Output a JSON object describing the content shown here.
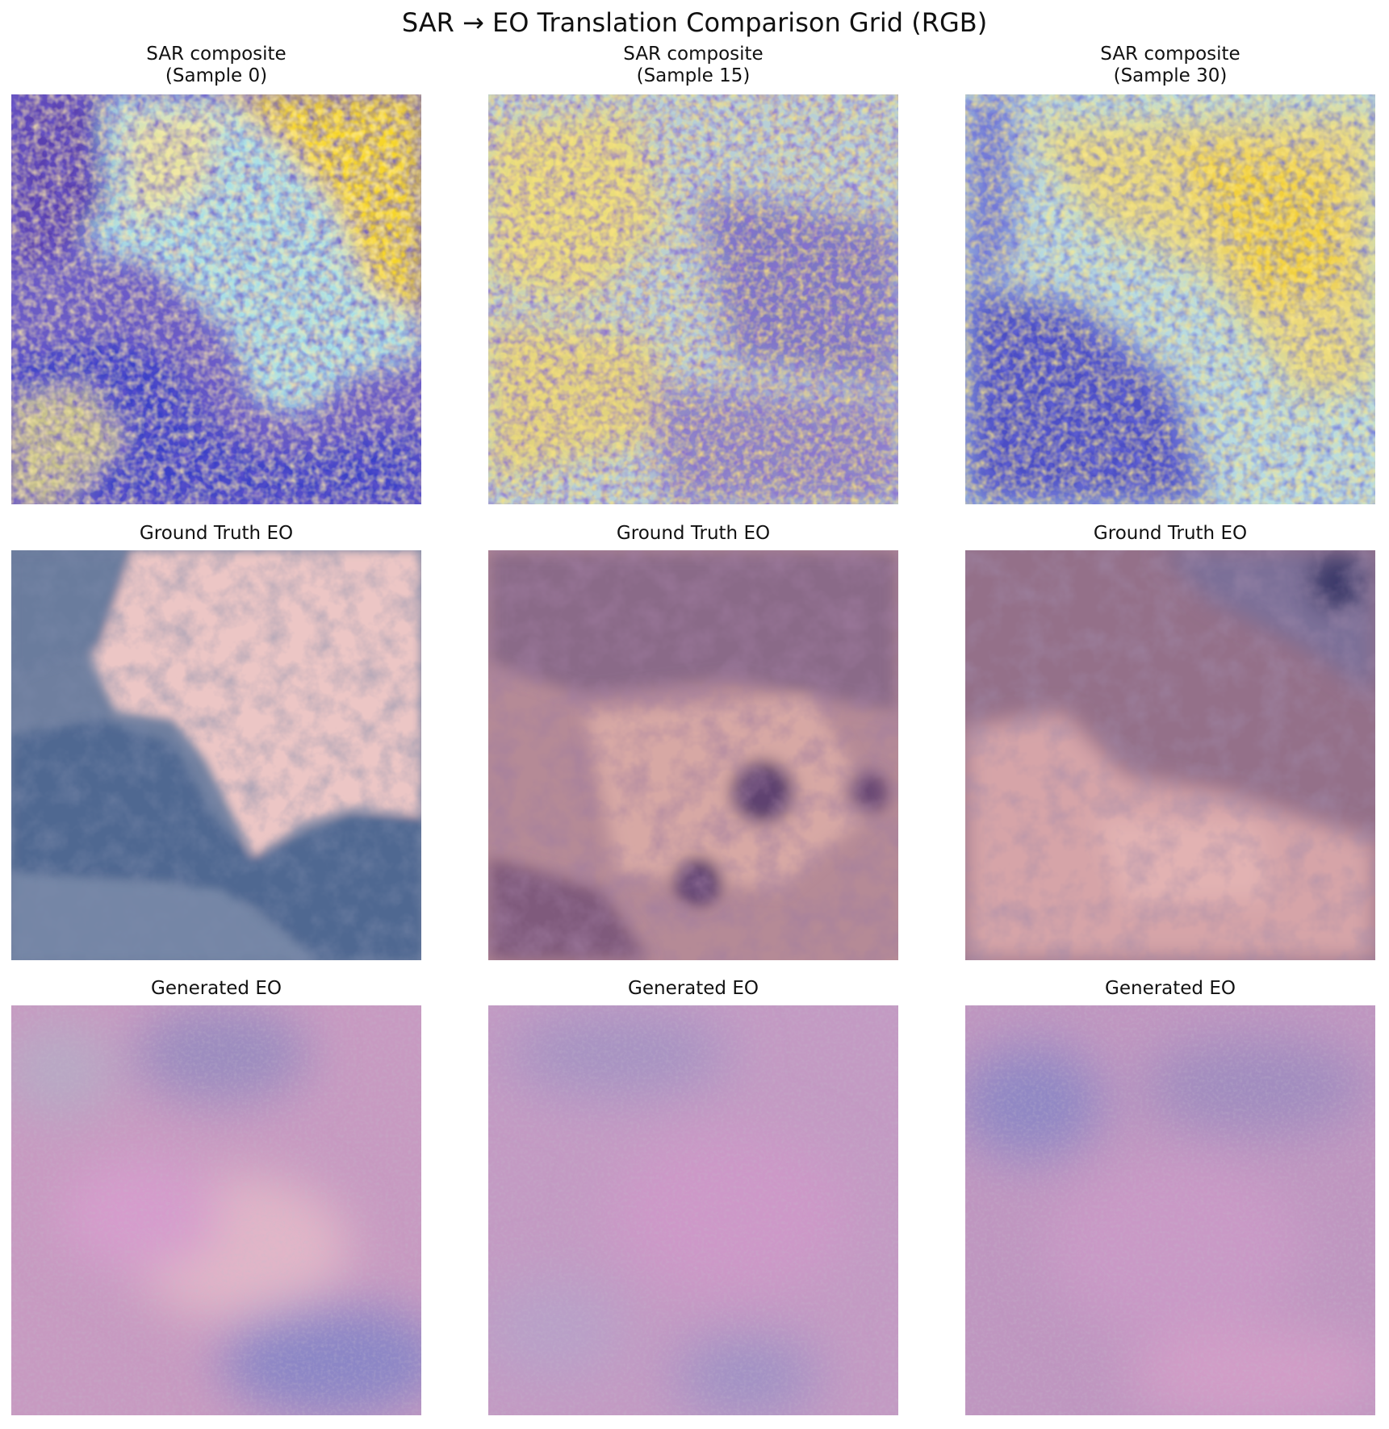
{
  "figure": {
    "title": "SAR → EO Translation Comparison Grid (RGB)"
  },
  "rows": [
    {
      "row": "sar",
      "panels": [
        {
          "title": "SAR composite\n(Sample 0)",
          "image": "sar-composite-sample-0"
        },
        {
          "title": "SAR composite\n(Sample 15)",
          "image": "sar-composite-sample-15"
        },
        {
          "title": "SAR composite\n(Sample 30)",
          "image": "sar-composite-sample-30"
        }
      ]
    },
    {
      "row": "ground-truth",
      "panels": [
        {
          "title": "Ground Truth EO",
          "image": "ground-truth-eo-sample-0"
        },
        {
          "title": "Ground Truth EO",
          "image": "ground-truth-eo-sample-15"
        },
        {
          "title": "Ground Truth EO",
          "image": "ground-truth-eo-sample-30"
        }
      ]
    },
    {
      "row": "generated",
      "panels": [
        {
          "title": "Generated EO",
          "image": "generated-eo-sample-0"
        },
        {
          "title": "Generated EO",
          "image": "generated-eo-sample-15"
        },
        {
          "title": "Generated EO",
          "image": "generated-eo-sample-30"
        }
      ]
    }
  ],
  "palette": {
    "sar_yellow": "#f5d21e",
    "sar_cyan": "#a9e3e8",
    "sar_blue": "#3a3fc8",
    "sar_purple": "#7a1f8f",
    "gt_pink": "#e9bcbc",
    "gt_slate": "#5f7395",
    "gt_mauve": "#9a6f8a",
    "gen_pink": "#cf9cc8",
    "gen_lilac": "#a99bc9"
  }
}
